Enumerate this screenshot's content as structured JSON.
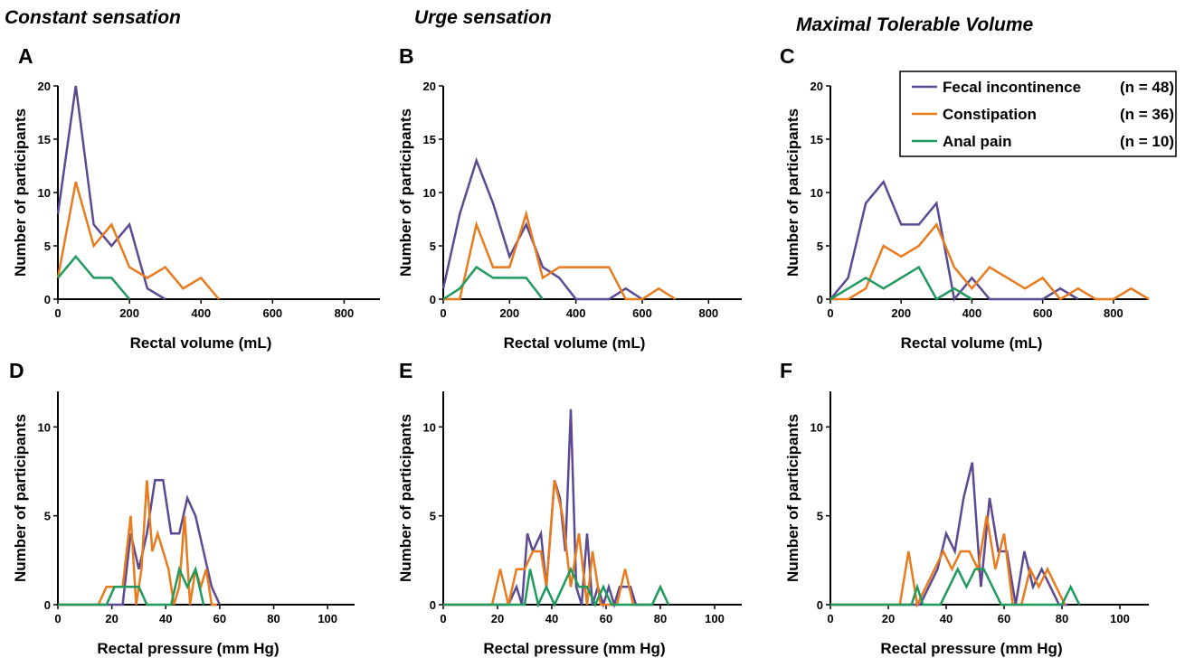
{
  "figure": {
    "column_titles": [
      "Constant sensation",
      "Urge sensation",
      "Maximal Tolerable Volume"
    ],
    "legend": [
      {
        "name": "Fecal incontinence",
        "n": "(n = 48)",
        "color": "#5B4A92"
      },
      {
        "name": "Constipation",
        "n": "(n = 36)",
        "color": "#E87B1E"
      },
      {
        "name": "Anal pain",
        "n": "(n = 10)",
        "color": "#1F9A5C"
      }
    ]
  },
  "chart_data": [
    {
      "panel": "A",
      "type": "line",
      "xlabel": "Rectal volume (mL)",
      "ylabel": "Number of participants",
      "xlim": [
        0,
        900
      ],
      "ylim": [
        0,
        20
      ],
      "xticks": [
        0,
        200,
        400,
        600,
        800
      ],
      "yticks": [
        0,
        5,
        10,
        15,
        20
      ],
      "series": [
        {
          "name": "Fecal incontinence",
          "color": "#5B4A92",
          "x": [
            0,
            50,
            100,
            150,
            200,
            250,
            300
          ],
          "y": [
            8,
            20,
            7,
            5,
            7,
            1,
            0
          ]
        },
        {
          "name": "Constipation",
          "color": "#E87B1E",
          "x": [
            0,
            50,
            100,
            150,
            200,
            250,
            300,
            350,
            400,
            450
          ],
          "y": [
            2,
            11,
            5,
            7,
            3,
            2,
            3,
            1,
            2,
            0
          ]
        },
        {
          "name": "Anal pain",
          "color": "#1F9A5C",
          "x": [
            0,
            50,
            100,
            150,
            200
          ],
          "y": [
            2,
            4,
            2,
            2,
            0
          ]
        }
      ]
    },
    {
      "panel": "B",
      "type": "line",
      "xlabel": "Rectal volume (mL)",
      "ylabel": "Number of participants",
      "xlim": [
        0,
        900
      ],
      "ylim": [
        0,
        20
      ],
      "xticks": [
        0,
        200,
        400,
        600,
        800
      ],
      "yticks": [
        0,
        5,
        10,
        15,
        20
      ],
      "series": [
        {
          "name": "Fecal incontinence",
          "color": "#5B4A92",
          "x": [
            0,
            50,
            100,
            150,
            200,
            250,
            300,
            350,
            400,
            450,
            500,
            550,
            600
          ],
          "y": [
            1,
            8,
            13,
            9,
            4,
            7,
            3,
            2,
            0,
            0,
            0,
            1,
            0
          ]
        },
        {
          "name": "Constipation",
          "color": "#E87B1E",
          "x": [
            0,
            50,
            100,
            150,
            200,
            250,
            300,
            350,
            400,
            450,
            500,
            550,
            600,
            650,
            700
          ],
          "y": [
            0,
            0,
            7,
            3,
            3,
            8,
            2,
            3,
            3,
            3,
            3,
            0,
            0,
            1,
            0
          ]
        },
        {
          "name": "Anal pain",
          "color": "#1F9A5C",
          "x": [
            0,
            50,
            100,
            150,
            200,
            250,
            300
          ],
          "y": [
            0,
            1,
            3,
            2,
            2,
            2,
            0
          ]
        }
      ]
    },
    {
      "panel": "C",
      "type": "line",
      "xlabel": "Rectal volume (mL)",
      "ylabel": "Number of participants",
      "xlim": [
        0,
        900
      ],
      "ylim": [
        0,
        20
      ],
      "xticks": [
        0,
        200,
        400,
        600,
        800
      ],
      "yticks": [
        0,
        5,
        10,
        15,
        20
      ],
      "series": [
        {
          "name": "Fecal incontinence",
          "color": "#5B4A92",
          "x": [
            0,
            50,
            100,
            150,
            200,
            250,
            300,
            350,
            400,
            450,
            500,
            550,
            600,
            650,
            700
          ],
          "y": [
            0,
            2,
            9,
            11,
            7,
            7,
            9,
            0,
            2,
            0,
            0,
            0,
            0,
            1,
            0
          ]
        },
        {
          "name": "Constipation",
          "color": "#E87B1E",
          "x": [
            0,
            50,
            100,
            150,
            200,
            250,
            300,
            350,
            400,
            450,
            500,
            550,
            600,
            650,
            700,
            750,
            800,
            850,
            900
          ],
          "y": [
            0,
            0,
            1,
            5,
            4,
            5,
            7,
            3,
            1,
            3,
            2,
            1,
            2,
            0,
            1,
            0,
            0,
            1,
            0
          ]
        },
        {
          "name": "Anal pain",
          "color": "#1F9A5C",
          "x": [
            0,
            50,
            100,
            150,
            200,
            250,
            300,
            350,
            400
          ],
          "y": [
            0,
            1,
            2,
            1,
            2,
            3,
            0,
            1,
            0
          ]
        }
      ]
    },
    {
      "panel": "D",
      "type": "line",
      "xlabel": "Rectal pressure (mm Hg)",
      "ylabel": "Number of participants",
      "xlim": [
        0,
        110
      ],
      "ylim": [
        0,
        12
      ],
      "xticks": [
        0,
        20,
        40,
        60,
        80,
        100
      ],
      "yticks": [
        0,
        5,
        10
      ],
      "series": [
        {
          "name": "Fecal incontinence",
          "color": "#5B4A92",
          "x": [
            0,
            15,
            24,
            27,
            30,
            33,
            36,
            39,
            42,
            45,
            48,
            51,
            54,
            57,
            60
          ],
          "y": [
            0,
            0,
            0,
            4,
            2,
            4,
            7,
            7,
            4,
            4,
            6,
            5,
            3,
            1,
            0
          ]
        },
        {
          "name": "Constipation",
          "color": "#E87B1E",
          "x": [
            0,
            15,
            18,
            21,
            24,
            27,
            29,
            31,
            33,
            35,
            37,
            39,
            41,
            43,
            45,
            47,
            49,
            51,
            53,
            55,
            57,
            59
          ],
          "y": [
            0,
            0,
            1,
            1,
            1,
            5,
            0,
            2,
            7,
            3,
            4,
            3,
            2,
            0,
            1,
            5,
            0,
            2,
            1,
            2,
            0,
            0
          ]
        },
        {
          "name": "Anal pain",
          "color": "#1F9A5C",
          "x": [
            0,
            18,
            21,
            24,
            27,
            30,
            33,
            36,
            39,
            42,
            45,
            48,
            51,
            54
          ],
          "y": [
            0,
            0,
            1,
            1,
            1,
            1,
            0,
            0,
            0,
            0,
            2,
            1,
            2,
            0
          ]
        }
      ]
    },
    {
      "panel": "E",
      "type": "line",
      "xlabel": "Rectal pressure (mm Hg)",
      "ylabel": "Number of participants",
      "xlim": [
        0,
        110
      ],
      "ylim": [
        0,
        12
      ],
      "xticks": [
        0,
        20,
        40,
        60,
        80,
        100
      ],
      "yticks": [
        0,
        5,
        10
      ],
      "series": [
        {
          "name": "Fecal incontinence",
          "color": "#5B4A92",
          "x": [
            0,
            24,
            27,
            29,
            31,
            33,
            36,
            38,
            41,
            43,
            45,
            47,
            49,
            51,
            53,
            55,
            57,
            59,
            61,
            63,
            65,
            67,
            69,
            71,
            73,
            75,
            77
          ],
          "y": [
            0,
            0,
            1,
            0,
            4,
            3,
            4,
            1,
            7,
            6,
            3,
            11,
            1,
            0,
            4,
            0,
            1,
            0,
            1,
            0,
            1,
            1,
            1,
            0,
            0,
            0,
            0
          ]
        },
        {
          "name": "Constipation",
          "color": "#E87B1E",
          "x": [
            0,
            18,
            21,
            24,
            27,
            30,
            33,
            36,
            38,
            41,
            44,
            47,
            50,
            53,
            55,
            58,
            61,
            64,
            67,
            70,
            73
          ],
          "y": [
            0,
            0,
            2,
            0,
            2,
            2,
            3,
            3,
            1,
            7,
            5,
            1,
            4,
            0,
            3,
            0,
            0,
            0,
            2,
            0,
            0
          ]
        },
        {
          "name": "Anal pain",
          "color": "#1F9A5C",
          "x": [
            0,
            27,
            30,
            32,
            35,
            38,
            41,
            44,
            47,
            50,
            53,
            56,
            59,
            62,
            65,
            68,
            71,
            74,
            77,
            80,
            83
          ],
          "y": [
            0,
            0,
            0,
            2,
            0,
            1,
            0,
            1,
            2,
            1,
            1,
            0,
            1,
            0,
            0,
            0,
            0,
            0,
            0,
            1,
            0
          ]
        }
      ]
    },
    {
      "panel": "F",
      "type": "line",
      "xlabel": "Rectal pressure (mm Hg)",
      "ylabel": "Number of participants",
      "xlim": [
        0,
        110
      ],
      "ylim": [
        0,
        12
      ],
      "xticks": [
        0,
        20,
        40,
        60,
        80,
        100
      ],
      "yticks": [
        0,
        5,
        10
      ],
      "series": [
        {
          "name": "Fecal incontinence",
          "color": "#5B4A92",
          "x": [
            0,
            28,
            31,
            34,
            37,
            40,
            43,
            46,
            49,
            52,
            55,
            58,
            61,
            64,
            67,
            70,
            73,
            76,
            79,
            82
          ],
          "y": [
            0,
            0,
            0,
            1,
            2,
            4,
            3,
            6,
            8,
            1,
            6,
            3,
            3,
            0,
            3,
            1,
            2,
            1,
            0,
            0
          ]
        },
        {
          "name": "Constipation",
          "color": "#E87B1E",
          "x": [
            0,
            24,
            27,
            30,
            33,
            36,
            39,
            42,
            45,
            48,
            51,
            54,
            57,
            60,
            63,
            66,
            69,
            72,
            75,
            78,
            81
          ],
          "y": [
            0,
            0,
            3,
            0,
            1,
            2,
            3,
            2,
            3,
            3,
            2,
            5,
            2,
            4,
            0,
            0,
            2,
            1,
            2,
            1,
            0
          ]
        },
        {
          "name": "Anal pain",
          "color": "#1F9A5C",
          "x": [
            0,
            28,
            30,
            32,
            35,
            38,
            41,
            44,
            47,
            50,
            53,
            56,
            59,
            62,
            65,
            68,
            71,
            74,
            77,
            80,
            83,
            86
          ],
          "y": [
            0,
            0,
            1,
            0,
            0,
            0,
            1,
            2,
            1,
            2,
            2,
            1,
            0,
            0,
            0,
            0,
            0,
            0,
            0,
            0,
            1,
            0
          ]
        }
      ]
    }
  ]
}
